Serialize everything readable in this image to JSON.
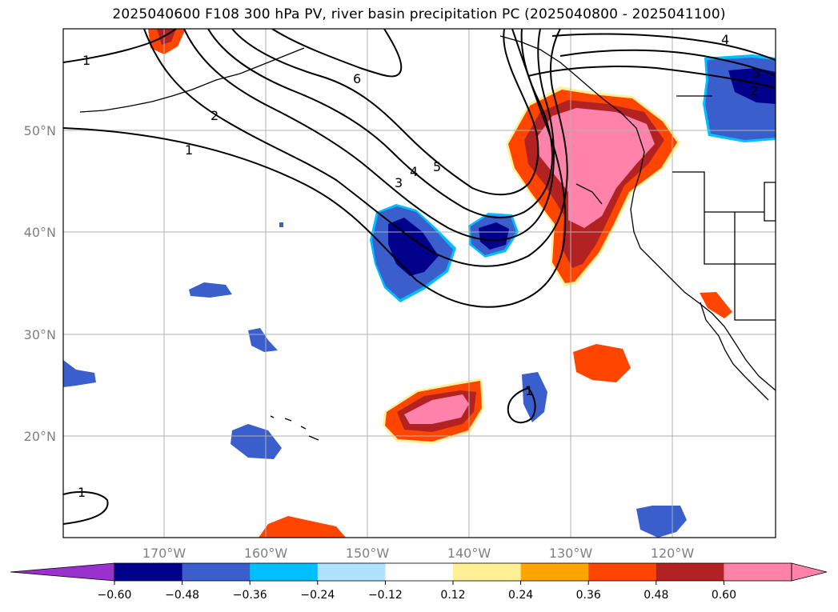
{
  "title": "2025040600 F108 300 hPa PV, river basin precipitation PC (2025040800 - 2025041100)",
  "map": {
    "lon_ticks": [
      "170°W",
      "160°W",
      "150°W",
      "140°W",
      "130°W",
      "120°W"
    ],
    "lat_ticks": [
      "50°N",
      "40°N",
      "30°N",
      "20°N"
    ],
    "contour_labels": [
      "1",
      "2",
      "6",
      "3",
      "4",
      "5",
      "1",
      "1",
      "4",
      "3",
      "2",
      "1"
    ]
  },
  "colorbar": {
    "colors": [
      "#9932cc",
      "#00008b",
      "#3a5fcd",
      "#00bfff",
      "#b0e2ff",
      "#ffffff",
      "#fff096",
      "#ffa500",
      "#ff4500",
      "#b22222",
      "#ff82ab",
      "#ff82ab"
    ],
    "tick_labels": [
      "−0.60",
      "−0.48",
      "−0.36",
      "−0.24",
      "−0.12",
      "0.12",
      "0.24",
      "0.36",
      "0.48",
      "0.60"
    ]
  }
}
